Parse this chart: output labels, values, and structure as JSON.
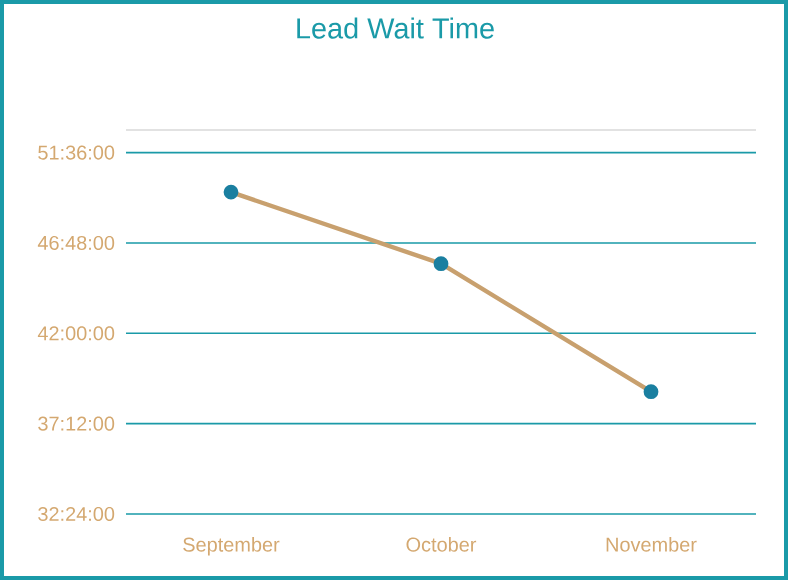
{
  "chart_data": {
    "type": "line",
    "title": "Lead Wait Time",
    "categories": [
      "September",
      "October",
      "November"
    ],
    "series": [
      {
        "color": "#c8a06e",
        "values": [
          49.5,
          45.7,
          38.9
        ]
      }
    ],
    "marker": "circle",
    "line_style": "solid",
    "ylim": [
      32.4,
      52.8
    ],
    "yticks": [
      {
        "value": 32.4,
        "label": "32:24:00"
      },
      {
        "value": 37.2,
        "label": "37:12:00"
      },
      {
        "value": 42,
        "label": "42:00:00"
      },
      {
        "value": 46.8,
        "label": "46:48:00"
      },
      {
        "value": 51.6,
        "label": "51:36:00"
      }
    ],
    "grid": "y"
  }
}
